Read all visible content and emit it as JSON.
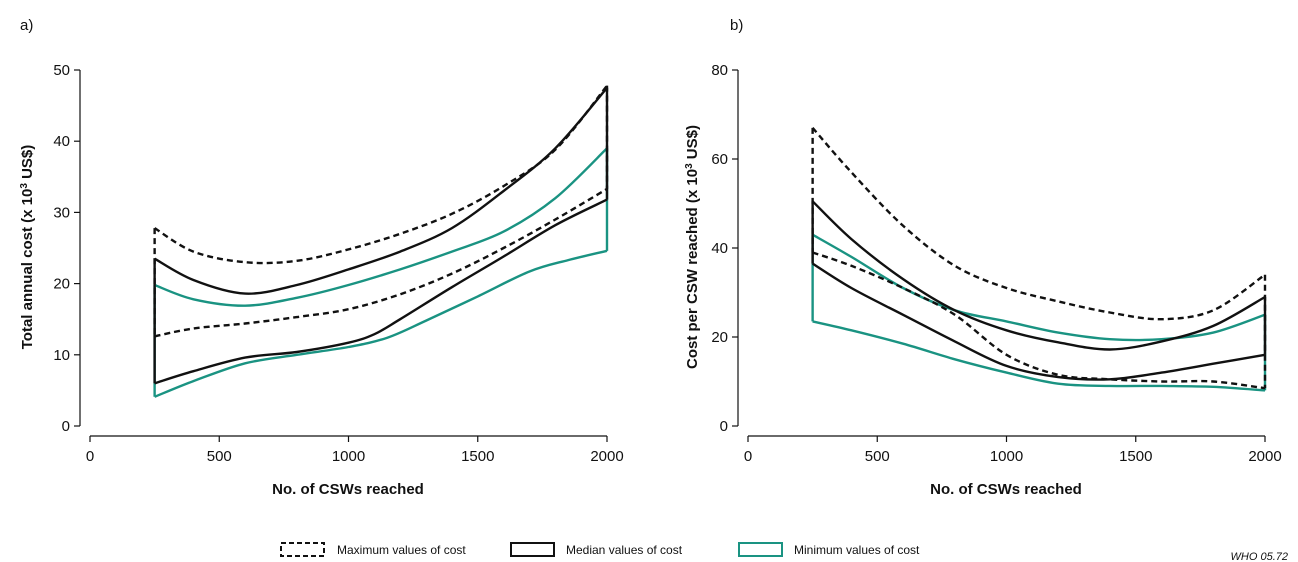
{
  "colors": {
    "axis": "#111111",
    "black": "#111111",
    "teal": "#1a9382"
  },
  "legend": {
    "items": [
      {
        "label": "Maximum values of cost",
        "style": "dashed",
        "color": "#111111"
      },
      {
        "label": "Median values of cost",
        "style": "solid",
        "color": "#111111"
      },
      {
        "label": "Minimum values of cost",
        "style": "solid",
        "color": "#1a9382"
      }
    ],
    "placement": "bottom-center"
  },
  "credit": "WHO 05.72",
  "chart_data": [
    {
      "panel_label": "a)",
      "type": "line",
      "xlabel": "No. of CSWs reached",
      "ylabel_main": "Total annual cost (x 10",
      "ylabel_sup": "3",
      "ylabel_end": " US$)",
      "xlim": [
        0,
        2000
      ],
      "ylim": [
        0,
        50
      ],
      "xticks": [
        0,
        500,
        1000,
        1500,
        2000
      ],
      "yticks": [
        0,
        10,
        20,
        30,
        40,
        50
      ],
      "grid": false,
      "bands": [
        {
          "name": "Maximum values of cost",
          "style": "dashed",
          "color": "#111111",
          "upper": [
            [
              250,
              27.8
            ],
            [
              400,
              24.5
            ],
            [
              600,
              23.0
            ],
            [
              800,
              23.2
            ],
            [
              1000,
              24.8
            ],
            [
              1200,
              27.0
            ],
            [
              1400,
              29.8
            ],
            [
              1600,
              33.7
            ],
            [
              1800,
              38.8
            ],
            [
              2000,
              47.8
            ]
          ],
          "lower": [
            [
              250,
              12.6
            ],
            [
              400,
              13.7
            ],
            [
              600,
              14.4
            ],
            [
              800,
              15.3
            ],
            [
              1000,
              16.4
            ],
            [
              1200,
              18.5
            ],
            [
              1400,
              21.4
            ],
            [
              1600,
              25.0
            ],
            [
              1800,
              29.0
            ],
            [
              2000,
              33.3
            ]
          ]
        },
        {
          "name": "Median values of cost",
          "style": "solid",
          "color": "#111111",
          "upper": [
            [
              250,
              23.5
            ],
            [
              400,
              20.5
            ],
            [
              600,
              18.6
            ],
            [
              800,
              19.8
            ],
            [
              1000,
              22.0
            ],
            [
              1200,
              24.5
            ],
            [
              1400,
              27.8
            ],
            [
              1600,
              33.0
            ],
            [
              1800,
              39.0
            ],
            [
              2000,
              47.5
            ]
          ],
          "lower": [
            [
              250,
              6.0
            ],
            [
              400,
              7.7
            ],
            [
              600,
              9.6
            ],
            [
              800,
              10.4
            ],
            [
              1000,
              11.7
            ],
            [
              1100,
              12.9
            ],
            [
              1200,
              15.0
            ],
            [
              1400,
              19.5
            ],
            [
              1600,
              23.8
            ],
            [
              1800,
              28.2
            ],
            [
              2000,
              31.8
            ]
          ]
        },
        {
          "name": "Minimum values of cost",
          "style": "solid",
          "color": "#1a9382",
          "upper": [
            [
              250,
              19.8
            ],
            [
              400,
              17.8
            ],
            [
              600,
              16.9
            ],
            [
              800,
              18.0
            ],
            [
              1000,
              19.8
            ],
            [
              1200,
              22.0
            ],
            [
              1400,
              24.5
            ],
            [
              1600,
              27.3
            ],
            [
              1800,
              32.0
            ],
            [
              2000,
              39.0
            ]
          ],
          "lower": [
            [
              250,
              4.1
            ],
            [
              400,
              6.3
            ],
            [
              600,
              8.8
            ],
            [
              800,
              10.0
            ],
            [
              1000,
              11.1
            ],
            [
              1150,
              12.4
            ],
            [
              1300,
              14.8
            ],
            [
              1500,
              18.2
            ],
            [
              1700,
              21.7
            ],
            [
              1850,
              23.3
            ],
            [
              2000,
              24.6
            ]
          ]
        }
      ]
    },
    {
      "panel_label": "b)",
      "type": "line",
      "xlabel": "No. of CSWs reached",
      "ylabel_main": "Cost per CSW reached (x 10",
      "ylabel_sup": "3",
      "ylabel_end": " US$)",
      "xlim": [
        0,
        2000
      ],
      "ylim": [
        0,
        80
      ],
      "xticks": [
        0,
        500,
        1000,
        1500,
        2000
      ],
      "yticks": [
        0,
        20,
        40,
        60,
        80
      ],
      "grid": false,
      "bands": [
        {
          "name": "Maximum values of cost",
          "style": "dashed",
          "color": "#111111",
          "upper": [
            [
              250,
              67.0
            ],
            [
              400,
              57.0
            ],
            [
              600,
              45.0
            ],
            [
              800,
              36.0
            ],
            [
              1000,
              31.0
            ],
            [
              1200,
              28.0
            ],
            [
              1400,
              25.5
            ],
            [
              1600,
              24.0
            ],
            [
              1800,
              26.0
            ],
            [
              2000,
              34.0
            ]
          ],
          "lower": [
            [
              250,
              39.0
            ],
            [
              400,
              36.0
            ],
            [
              600,
              31.0
            ],
            [
              800,
              25.0
            ],
            [
              1000,
              16.0
            ],
            [
              1200,
              11.5
            ],
            [
              1400,
              10.5
            ],
            [
              1600,
              10.0
            ],
            [
              1800,
              10.0
            ],
            [
              2000,
              8.5
            ]
          ]
        },
        {
          "name": "Median values of cost",
          "style": "solid",
          "color": "#111111",
          "upper": [
            [
              250,
              50.5
            ],
            [
              400,
              42.0
            ],
            [
              600,
              33.0
            ],
            [
              800,
              26.0
            ],
            [
              1000,
              21.5
            ],
            [
              1200,
              18.8
            ],
            [
              1400,
              17.2
            ],
            [
              1600,
              19.0
            ],
            [
              1800,
              22.5
            ],
            [
              2000,
              29.0
            ]
          ],
          "lower": [
            [
              250,
              36.5
            ],
            [
              400,
              31.0
            ],
            [
              600,
              25.0
            ],
            [
              800,
              19.0
            ],
            [
              1000,
              13.5
            ],
            [
              1200,
              11.0
            ],
            [
              1400,
              10.5
            ],
            [
              1600,
              12.0
            ],
            [
              1800,
              14.0
            ],
            [
              2000,
              16.0
            ]
          ]
        },
        {
          "name": "Minimum values of cost",
          "style": "solid",
          "color": "#1a9382",
          "upper": [
            [
              250,
              43.0
            ],
            [
              400,
              38.0
            ],
            [
              600,
              31.0
            ],
            [
              800,
              26.0
            ],
            [
              1000,
              23.5
            ],
            [
              1200,
              21.0
            ],
            [
              1400,
              19.5
            ],
            [
              1600,
              19.5
            ],
            [
              1800,
              21.0
            ],
            [
              2000,
              25.0
            ]
          ],
          "lower": [
            [
              250,
              23.5
            ],
            [
              400,
              21.5
            ],
            [
              600,
              18.5
            ],
            [
              800,
              15.0
            ],
            [
              1000,
              12.0
            ],
            [
              1200,
              9.5
            ],
            [
              1400,
              9.0
            ],
            [
              1600,
              9.0
            ],
            [
              1800,
              8.8
            ],
            [
              2000,
              8.0
            ]
          ]
        }
      ]
    }
  ]
}
